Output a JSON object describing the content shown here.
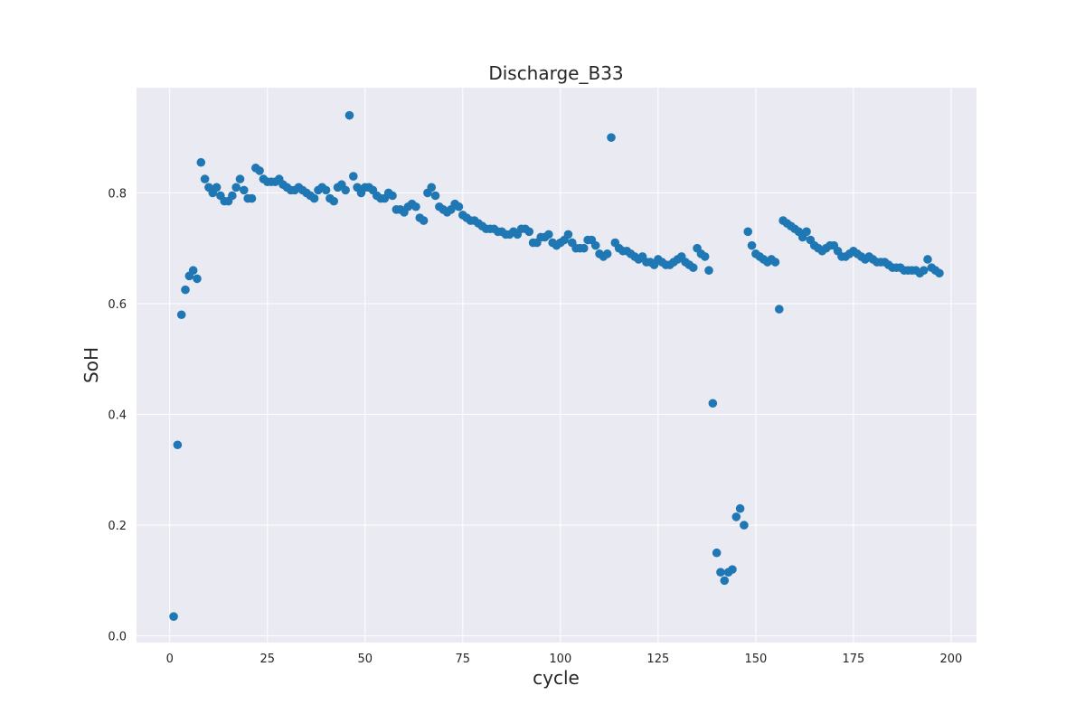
{
  "chart_data": {
    "type": "scatter",
    "title": "Discharge_B33",
    "xlabel": "cycle",
    "ylabel": "SoH",
    "xlim": [
      -8.5,
      206.5
    ],
    "ylim": [
      -0.012,
      0.99
    ],
    "x_ticks": [
      0,
      25,
      50,
      75,
      100,
      125,
      150,
      175,
      200
    ],
    "y_ticks": [
      0.0,
      0.2,
      0.4,
      0.6,
      0.8
    ],
    "y_tick_labels": [
      "0.0",
      "0.2",
      "0.4",
      "0.6",
      "0.8"
    ],
    "grid": true,
    "marker_color": "#1f77b4",
    "background_color": "#eaeaf2",
    "series": [
      {
        "x": [
          1,
          2,
          3,
          4,
          5,
          6,
          7,
          8,
          9,
          10,
          11,
          12,
          13,
          14,
          15,
          16,
          17,
          18,
          19,
          20,
          21,
          22,
          23,
          24,
          25,
          26,
          27,
          28,
          29,
          30,
          31,
          32,
          33,
          34,
          35,
          36,
          37,
          38,
          39,
          40,
          41,
          42,
          43,
          44,
          45,
          46,
          47,
          48,
          49,
          50,
          51,
          52,
          53,
          54,
          55,
          56,
          57,
          58,
          59,
          60,
          61,
          62,
          63,
          64,
          65,
          66,
          67,
          68,
          69,
          70,
          71,
          72,
          73,
          74,
          75,
          76,
          77,
          78,
          79,
          80,
          81,
          82,
          83,
          84,
          85,
          86,
          87,
          88,
          89,
          90,
          91,
          92,
          93,
          94,
          95,
          96,
          97,
          98,
          99,
          100,
          101,
          102,
          103,
          104,
          105,
          106,
          107,
          108,
          109,
          110,
          111,
          112,
          113,
          114,
          115,
          116,
          117,
          118,
          119,
          120,
          121,
          122,
          123,
          124,
          125,
          126,
          127,
          128,
          129,
          130,
          131,
          132,
          133,
          134,
          135,
          136,
          137,
          138,
          139,
          140,
          141,
          142,
          143,
          144,
          145,
          146,
          147,
          148,
          149,
          150,
          151,
          152,
          153,
          154,
          155,
          156,
          157,
          158,
          159,
          160,
          161,
          162,
          163,
          164,
          165,
          166,
          167,
          168,
          169,
          170,
          171,
          172,
          173,
          174,
          175,
          176,
          177,
          178,
          179,
          180,
          181,
          182,
          183,
          184,
          185,
          186,
          187,
          188,
          189,
          190,
          191,
          192,
          193,
          194,
          195,
          196,
          197
        ],
        "y": [
          0.035,
          0.345,
          0.58,
          0.625,
          0.65,
          0.66,
          0.645,
          0.855,
          0.825,
          0.81,
          0.8,
          0.81,
          0.795,
          0.785,
          0.785,
          0.795,
          0.81,
          0.825,
          0.805,
          0.79,
          0.79,
          0.845,
          0.84,
          0.825,
          0.82,
          0.82,
          0.82,
          0.825,
          0.815,
          0.81,
          0.805,
          0.805,
          0.81,
          0.805,
          0.8,
          0.795,
          0.79,
          0.805,
          0.81,
          0.805,
          0.79,
          0.785,
          0.81,
          0.815,
          0.805,
          0.94,
          0.83,
          0.81,
          0.8,
          0.81,
          0.81,
          0.805,
          0.795,
          0.79,
          0.79,
          0.8,
          0.795,
          0.77,
          0.77,
          0.765,
          0.775,
          0.78,
          0.775,
          0.755,
          0.75,
          0.8,
          0.81,
          0.795,
          0.775,
          0.77,
          0.765,
          0.77,
          0.78,
          0.775,
          0.76,
          0.755,
          0.75,
          0.75,
          0.745,
          0.74,
          0.735,
          0.735,
          0.735,
          0.73,
          0.73,
          0.725,
          0.725,
          0.73,
          0.725,
          0.735,
          0.735,
          0.73,
          0.71,
          0.71,
          0.72,
          0.72,
          0.725,
          0.71,
          0.705,
          0.71,
          0.715,
          0.725,
          0.71,
          0.7,
          0.7,
          0.7,
          0.715,
          0.715,
          0.705,
          0.69,
          0.685,
          0.69,
          0.9,
          0.71,
          0.7,
          0.695,
          0.695,
          0.69,
          0.685,
          0.68,
          0.685,
          0.675,
          0.675,
          0.67,
          0.68,
          0.675,
          0.67,
          0.67,
          0.675,
          0.68,
          0.685,
          0.675,
          0.67,
          0.665,
          0.7,
          0.69,
          0.685,
          0.66,
          0.42,
          0.15,
          0.115,
          0.1,
          0.115,
          0.12,
          0.215,
          0.23,
          0.2,
          0.73,
          0.705,
          0.69,
          0.685,
          0.68,
          0.675,
          0.68,
          0.675,
          0.59,
          0.75,
          0.745,
          0.74,
          0.735,
          0.73,
          0.72,
          0.73,
          0.715,
          0.705,
          0.7,
          0.695,
          0.7,
          0.705,
          0.705,
          0.695,
          0.685,
          0.685,
          0.69,
          0.695,
          0.69,
          0.685,
          0.68,
          0.685,
          0.68,
          0.675,
          0.675,
          0.675,
          0.67,
          0.665,
          0.665,
          0.665,
          0.66,
          0.66,
          0.66,
          0.66,
          0.655,
          0.66,
          0.68,
          0.665,
          0.66,
          0.655
        ]
      }
    ]
  }
}
